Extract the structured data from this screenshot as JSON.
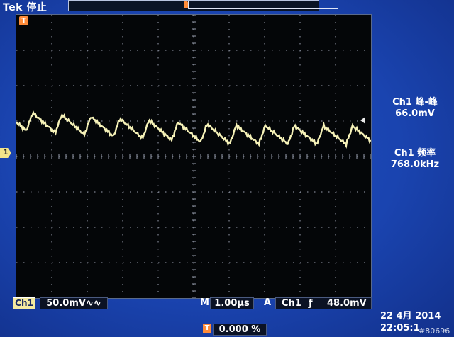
{
  "header": {
    "brand": "Tek",
    "status": "停止"
  },
  "screen": {
    "trigger_badge": "T",
    "ground_marker": "1",
    "waveform_color": "#f6f2b8",
    "grid_color": "#9aa0b0"
  },
  "measurements": [
    {
      "label": "Ch1 峰-峰",
      "value": "66.0mV"
    },
    {
      "label": "Ch1 频率",
      "value": "768.0kHz"
    }
  ],
  "bottom": {
    "ch1_badge": "Ch1",
    "ch1_scale": "50.0mV",
    "ch1_bw_symbol": "∿∿",
    "horiz_label": "M",
    "horiz_value": "1.00µs",
    "trig_mode_label": "A",
    "trig_source": "Ch1",
    "trig_slope": "ƒ",
    "trig_level": "48.0mV",
    "trig_pos_badge": "T",
    "trig_pos_value": "0.000 %",
    "date_line1": "22 4月  2014",
    "date_line2": "22:05:1",
    "watermark": "#80696"
  }
}
